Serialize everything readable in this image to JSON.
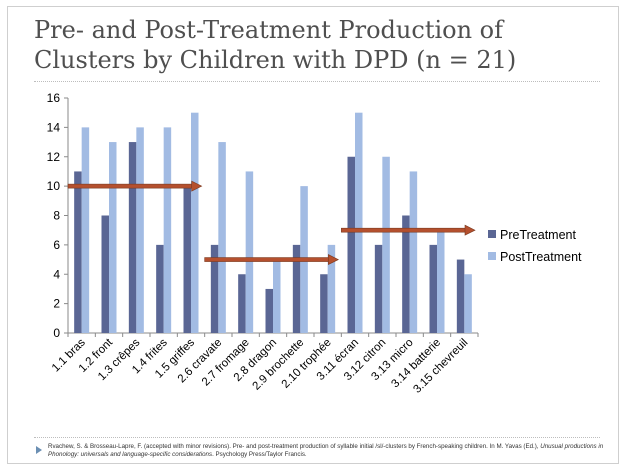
{
  "slide": {
    "title": "Pre- and Post-Treatment Production of Clusters by Children with DPD (n = 21)",
    "footer_part1": "Rvachew, S. & Brosseau-Lapre, F. (accepted with minor revisions). Pre- and post-treatment production of syllable initial /sl/-clusters by French-speaking children. In M. Yavas (Ed.), ",
    "footer_italic": "Unusual productions in Phonology: universals and language-specific considerations",
    "footer_part2": ". Psychology Press/Taylor Francis."
  },
  "chart_data": {
    "type": "bar",
    "categories": [
      "1.1 bras",
      "1.2 front",
      "1.3 crêpes",
      "1.4 frites",
      "1.5 griffes",
      "2.6 cravate",
      "2.7 fromage",
      "2.8 dragon",
      "2.9 brochette",
      "2.10 trophée",
      "3.11 écran",
      "3.12 citron",
      "3.13 micro",
      "3.14 batterie",
      "3.15 chevreuil"
    ],
    "series": [
      {
        "name": "PreTreatment",
        "color": "#5a6694",
        "values": [
          11,
          8,
          13,
          6,
          10,
          6,
          4,
          3,
          6,
          4,
          12,
          6,
          8,
          6,
          5
        ]
      },
      {
        "name": "PostTreatment",
        "color": "#a2bbe3",
        "values": [
          14,
          13,
          14,
          14,
          15,
          13,
          11,
          5,
          10,
          6,
          15,
          12,
          11,
          7,
          4
        ]
      }
    ],
    "ylim": [
      0,
      16
    ],
    "yticks": [
      0,
      2,
      4,
      6,
      8,
      10,
      12,
      14,
      16
    ],
    "grid": false,
    "legend_position": "right",
    "annotations": [
      {
        "type": "arrow",
        "y": 10,
        "from_category": 0,
        "to_category": 4,
        "color": "#b5502e"
      },
      {
        "type": "arrow",
        "y": 5,
        "from_category": 5,
        "to_category": 9,
        "color": "#b5502e"
      },
      {
        "type": "arrow",
        "y": 7,
        "from_category": 10,
        "to_category": 14,
        "color": "#b5502e"
      }
    ]
  }
}
